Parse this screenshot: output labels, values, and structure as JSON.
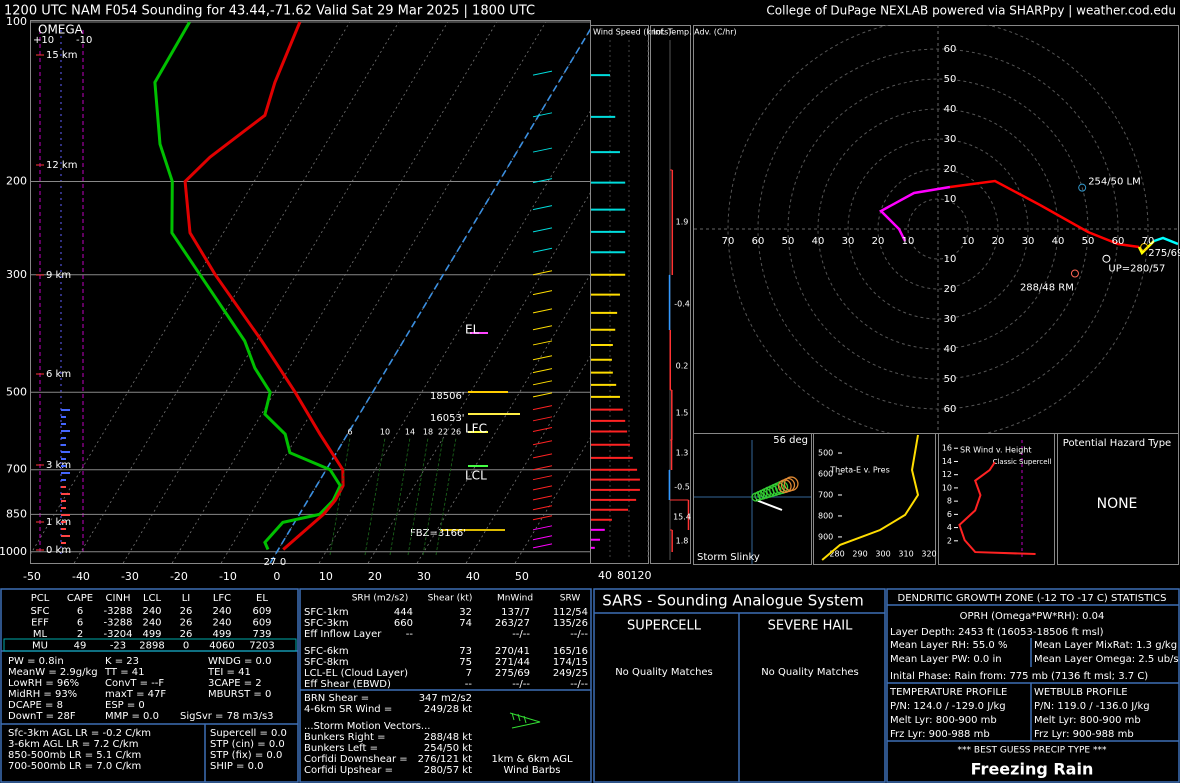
{
  "header": {
    "title": "1200 UTC NAM F054 Sounding for 43.44,-71.62 Valid  Sat 29 Mar 2025 | 1800 UTC",
    "credit": "College of DuPage NEXLAB powered via SHARPpy | weather.cod.edu"
  },
  "skewt": {
    "type": "skewt",
    "log_pressure": true,
    "ylim": [
      100,
      1050
    ],
    "xlim": [
      -50.4,
      63.9
    ],
    "pressure_ticks": [
      100,
      200,
      300,
      500,
      700,
      850,
      1000
    ],
    "temperature_ticks": [
      -50,
      -40,
      -30,
      -20,
      -10,
      0,
      10,
      20,
      30,
      40,
      50
    ],
    "height_labels": [
      "15 km",
      "12 km",
      "9 km",
      "6 km",
      "3 km",
      "1 km",
      "0 km"
    ],
    "omega": {
      "title": "OMEGA",
      "ticks": [
        "+10",
        "-10"
      ]
    },
    "temperature": {
      "color": "#e00000",
      "pressure": [
        990,
        850,
        800,
        750,
        700,
        600,
        500,
        400,
        300,
        250,
        200,
        180,
        150,
        130,
        100
      ],
      "values": [
        1.0,
        4.9,
        5.6,
        5.4,
        3.4,
        -5.6,
        -15.8,
        -28.9,
        -46.5,
        -56.8,
        -64.1,
        -62.0,
        -55.9,
        -57.9,
        -60.2
      ]
    },
    "dewpoint": {
      "color": "#00c000",
      "pressure": [
        990,
        960,
        880,
        850,
        800,
        750,
        700,
        650,
        600,
        550,
        500,
        450,
        400,
        300,
        250,
        200,
        170,
        130,
        100
      ],
      "values": [
        -2.1,
        -3.6,
        -2.4,
        4.1,
        5.2,
        4.8,
        0.8,
        -9.5,
        -12.7,
        -19.3,
        -20.9,
        -27.0,
        -32.4,
        -49.6,
        -60.5,
        -66.7,
        -73.8,
        -82.4,
        -82.7
      ]
    },
    "levels": [
      "EL",
      "18506'",
      "16053'",
      "LFC",
      "LCL",
      "FBZ=3166'"
    ],
    "mixing_ratio_labels": [
      6,
      10,
      14,
      18,
      22,
      26
    ],
    "surface_labels": [
      "27",
      "0"
    ]
  },
  "wind": {
    "title": "Wind Speed (knots)",
    "ticks": [
      40,
      80,
      120
    ],
    "pressure": [
      126,
      151,
      176,
      201,
      226,
      249,
      272,
      300,
      327,
      354,
      381,
      407,
      434,
      459,
      484,
      510,
      539,
      566,
      593,
      628,
      665,
      700,
      731,
      764,
      798,
      833,
      870,
      909,
      949,
      983
    ],
    "speed": [
      40,
      51,
      61,
      72,
      72,
      72,
      72,
      72,
      61,
      55,
      51,
      46,
      44,
      46,
      53,
      61,
      67,
      72,
      76,
      82,
      88,
      97,
      103,
      103,
      95,
      78,
      44,
      29,
      19,
      8
    ]
  },
  "advection": {
    "title": "Inf. Temp. Adv. (C/hr)",
    "values": [
      1.9,
      -0.4,
      0.2,
      1.5,
      1.3,
      -0.5,
      15.4,
      1.8
    ]
  },
  "hodograph": {
    "rings": [
      10,
      20,
      30,
      40,
      50,
      60,
      70
    ],
    "series": [
      {
        "color": "#ff00ff",
        "u": [
          -11,
          -13,
          -19,
          -8,
          4
        ],
        "v": [
          -4,
          0,
          6,
          12,
          14
        ]
      },
      {
        "color": "#ff0000",
        "u": [
          4,
          19,
          34,
          50,
          60,
          67
        ],
        "v": [
          14,
          16,
          8,
          -1,
          -5,
          -6
        ]
      },
      {
        "color": "#ffff00",
        "u": [
          67,
          68,
          72
        ],
        "v": [
          -6,
          -8,
          -4
        ]
      },
      {
        "color": "#00ffff",
        "u": [
          72,
          75,
          80
        ],
        "v": [
          -4,
          -3,
          -5
        ]
      }
    ],
    "markers": [
      {
        "label": "254/50 LM",
        "direction": 254,
        "speed": 50,
        "color": "#3399cc"
      },
      {
        "label": "288/48 RM",
        "direction": 288,
        "speed": 48,
        "color": "#ff6655"
      },
      {
        "label": "UP=280/57",
        "direction": 280,
        "speed": 57,
        "color": "#ffffff"
      },
      {
        "label": "275/69",
        "direction": 275,
        "speed": 69,
        "color": "#ffcc00"
      }
    ]
  },
  "slinky": {
    "title": "Storm Slinky",
    "label": "56 deg"
  },
  "theta_e": {
    "title": "Theta-E v. Pres",
    "xlim": [
      270.4,
      322.6
    ],
    "ylim": [
      414,
      1010
    ],
    "xticks": [
      280,
      290,
      300,
      310,
      320
    ],
    "yticks": [
      500,
      600,
      700,
      800,
      900
    ],
    "pressure": [
      414,
      581,
      700,
      795,
      867,
      938,
      1010
    ],
    "values": [
      315.2,
      312.6,
      315.2,
      309.6,
      298.7,
      281.3,
      273.5
    ]
  },
  "sr_wind": {
    "title": "SR Wind v. Height",
    "xlim": [
      0,
      80
    ],
    "ylim": [
      -0.9,
      18
    ],
    "yticks": [
      2,
      4,
      6,
      8,
      10,
      12,
      14,
      16
    ],
    "reference": "Classic Supercell",
    "height": [
      0,
      0.3,
      2.1,
      4.4,
      6.6,
      8.9,
      11.1,
      12.7,
      13.9
    ],
    "speed": [
      69,
      23,
      15,
      11,
      23,
      27,
      23,
      34,
      38
    ]
  },
  "hazard": {
    "title": "Potential Hazard Type",
    "value": "NONE"
  },
  "parcels": {
    "headers": [
      "PCL",
      "CAPE",
      "CINH",
      "LCL",
      "LI",
      "LFC",
      "EL"
    ],
    "rows": [
      [
        "SFC",
        6,
        -3288,
        240,
        26,
        240,
        609
      ],
      [
        "EFF",
        6,
        -3288,
        240,
        26,
        240,
        609
      ],
      [
        "ML",
        2,
        -3204,
        499,
        26,
        499,
        739
      ],
      [
        "MU",
        49,
        -23,
        2898,
        0,
        4060,
        7203
      ]
    ]
  },
  "indices": {
    "col1": [
      "PW = 0.8in",
      "MeanW = 2.9g/kg",
      "LowRH = 96%",
      "MidRH = 93%",
      "DCAPE = 8",
      "DownT = 28F"
    ],
    "col2": [
      "K = 23",
      "TT = 41",
      "ConvT = --F",
      "maxT = 47F",
      "ESP = 0",
      "MMP = 0.0"
    ],
    "col3": [
      "WNDG = 0.0",
      "TEI = 41",
      "3CAPE = 2",
      "MBURST = 0"
    ],
    "sigsvr": "SigSvr = 78 m3/s3"
  },
  "lapse_rates": [
    "Sfc-3km AGL LR = -0.2 C/km",
    "3-6km AGL LR = 7.2 C/km",
    "850-500mb LR = 5.1 C/km",
    "700-500mb LR = 7.0 C/km"
  ],
  "composites": [
    "Supercell = 0.0",
    "STP (cin) = 0.0",
    "STP (fix) = 0.0",
    "SHIP = 0.0"
  ],
  "kinematics": {
    "headers": [
      "SRH (m2/s2)",
      "Shear (kt)",
      "MnWind",
      "SRW"
    ],
    "rows": [
      [
        "SFC-1km",
        444,
        32,
        "137/7",
        "112/54"
      ],
      [
        "SFC-3km",
        660,
        74,
        "263/27",
        "135/26"
      ],
      [
        "Eff Inflow Layer",
        "--",
        null,
        "--/--",
        "--/--"
      ],
      [
        "SFC-6km",
        null,
        73,
        "270/41",
        "165/16"
      ],
      [
        "SFC-8km",
        null,
        75,
        "271/44",
        "174/15"
      ],
      [
        "LCL-EL (Cloud Layer)",
        null,
        7,
        "275/69",
        "249/25"
      ],
      [
        "Eff Shear (EBWD)",
        null,
        "--",
        "--/--",
        "--/--"
      ]
    ],
    "extra": [
      [
        "BRN Shear =",
        "347 m2/s2"
      ],
      [
        "4-6km SR Wind =",
        "249/28 kt"
      ]
    ],
    "storm_motion": {
      "title": "...Storm Motion Vectors...",
      "rows": [
        [
          "Bunkers Right =",
          "288/48 kt"
        ],
        [
          "Bunkers Left =",
          "254/50 kt"
        ],
        [
          "Corfidi Downshear =",
          "276/121 kt"
        ],
        [
          "Corfidi Upshear =",
          "280/57 kt"
        ]
      ],
      "barbs_label": [
        "1km & 6km AGL",
        "Wind Barbs"
      ]
    }
  },
  "sars": {
    "title": "SARS - Sounding Analogue System",
    "supercell": "SUPERCELL",
    "hail": "SEVERE HAIL",
    "supercell_matches": "No Quality Matches",
    "hail_matches": "No Quality Matches"
  },
  "dgz": {
    "title": "DENDRITIC GROWTH ZONE (-12 TO -17 C) STATISTICS",
    "oprh": "OPRH (Omega*PW*RH): 0.04",
    "depth": "Layer Depth: 2453 ft (16053-18506 ft msl)",
    "stats": [
      "Mean Layer RH: 55.0 %",
      "Mean Layer MixRat: 1.3 g/kg",
      "Mean Layer PW: 0.0 in",
      "Mean Layer Omega: 2.5 ub/s"
    ],
    "phase": "Inital Phase: Rain from: 775 mb (7136 ft msl; 3.7 C)",
    "temperature": [
      "TEMPERATURE PROFILE",
      "P/N: 124.0 / -129.0 J/kg",
      "Melt Lyr: 800-900 mb",
      "Frz Lyr: 900-988 mb"
    ],
    "wetbulb": [
      "WETBULB PROFILE",
      "P/N: 119.0 / -136.0 J/kg",
      "Melt Lyr: 800-900 mb",
      "Frz Lyr: 900-988 mb"
    ]
  },
  "precip": {
    "title": "*** BEST GUESS PRECIP TYPE ***",
    "value": "Freezing Rain"
  }
}
